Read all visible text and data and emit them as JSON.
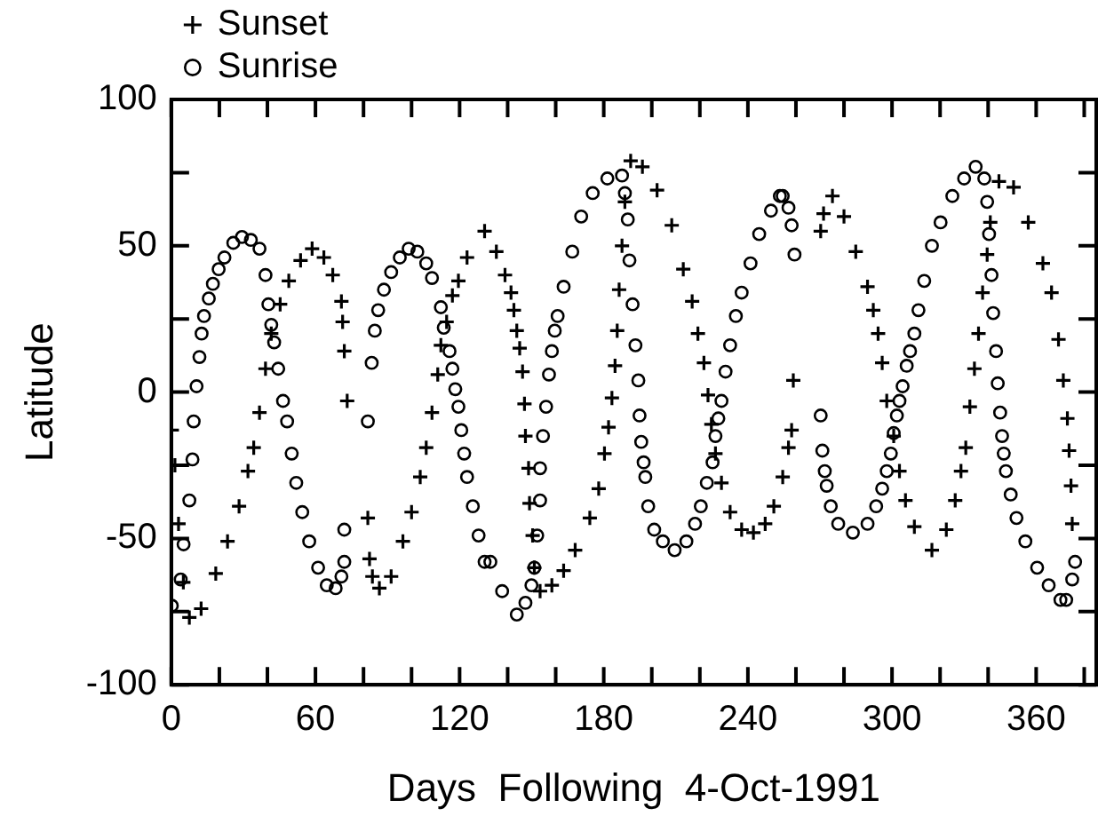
{
  "chart_data": {
    "type": "scatter",
    "xlabel": "Days  Following  4-Oct-1991",
    "ylabel": "Latitude",
    "xlim": [
      0,
      385
    ],
    "ylim": [
      -100,
      100
    ],
    "xticks": [
      0,
      {
        "value": 20,
        "label": null
      },
      {
        "value": 40,
        "label": null
      },
      60,
      {
        "value": 80,
        "label": null
      },
      {
        "value": 100,
        "label": null
      },
      120,
      {
        "value": 140,
        "label": null
      },
      {
        "value": 160,
        "label": null
      },
      180,
      {
        "value": 200,
        "label": null
      },
      {
        "value": 220,
        "label": null
      },
      240,
      {
        "value": 260,
        "label": null
      },
      {
        "value": 280,
        "label": null
      },
      300,
      {
        "value": 320,
        "label": null
      },
      {
        "value": 340,
        "label": null
      },
      360,
      {
        "value": 380,
        "label": null
      }
    ],
    "yticks": [
      -100,
      {
        "value": -75,
        "label": null
      },
      -50,
      {
        "value": -25,
        "label": null
      },
      0,
      {
        "value": 25,
        "label": null
      },
      50,
      {
        "value": 75,
        "label": null
      },
      100
    ],
    "legend": "top left",
    "grid": false,
    "series": [
      {
        "name": "Sunset",
        "color": "#000000",
        "marker": "cross",
        "x": [
          0.2,
          1.5,
          3,
          5,
          7.5,
          12.4,
          18.5,
          23.4,
          28.2,
          31.9,
          34.3,
          36.7,
          39.2,
          41.6,
          45.3,
          48.9,
          53.8,
          58.6,
          63.5,
          67.2,
          70.8,
          71.3,
          72,
          73.2,
          81.8,
          82.5,
          83.7,
          86.6,
          91.5,
          96.4,
          100,
          103.6,
          106.1,
          108.5,
          110.9,
          112.2,
          114.6,
          117,
          119.5,
          123.1,
          130.4,
          135.3,
          138.9,
          141.4,
          142.6,
          143.8,
          145,
          146.2,
          147,
          147.4,
          148.7,
          149.1,
          150.4,
          151.1,
          153.5,
          158.4,
          163.3,
          168.1,
          174.2,
          177.9,
          180.3,
          182,
          183.4,
          184.7,
          185.6,
          186.4,
          187.6,
          188.8,
          191.2,
          196.1,
          202.2,
          208.3,
          213.1,
          216.8,
          219.2,
          221.7,
          223.4,
          224.8,
          226.5,
          229,
          232.6,
          237.4,
          242.3,
          247.2,
          250.8,
          254.5,
          256.9,
          258.2,
          258.9,
          270.3,
          271.5,
          275.2,
          280,
          284.9,
          289.8,
          292.2,
          294.2,
          295.9,
          297.8,
          300.7,
          303.1,
          305.6,
          309.3,
          316.6,
          322.6,
          326.3,
          328.7,
          330.7,
          332.4,
          334.3,
          336,
          337.7,
          339.6,
          340.9,
          344.5,
          350.6,
          356.7,
          362.8,
          366.4,
          369.3,
          371.3,
          373,
          373.7,
          374.5,
          375
        ],
        "values": [
          -13,
          -25,
          -45,
          -65,
          -77,
          -74,
          -62,
          -51,
          -39,
          -27,
          -19,
          -7,
          8,
          20,
          30,
          38,
          45,
          49,
          46,
          40,
          31,
          24,
          14,
          -3,
          -43,
          -57,
          -63,
          -67,
          -63,
          -51,
          -41,
          -29,
          -19,
          -7,
          6,
          16,
          24,
          33,
          38,
          46,
          55,
          48,
          40,
          34,
          28,
          21,
          15,
          7,
          -4,
          -15,
          -26,
          -38,
          -49,
          -60,
          -68,
          -66,
          -61,
          -54,
          -43,
          -33,
          -21,
          -12,
          -2,
          9,
          21,
          35,
          50,
          65,
          79,
          77,
          69,
          57,
          42,
          31,
          20,
          10,
          -1,
          -11,
          -21,
          -31,
          -41,
          -47,
          -48,
          -45,
          -39,
          -29,
          -19,
          -13,
          4,
          55,
          61,
          67,
          60,
          48,
          36,
          28,
          20,
          10,
          -3,
          -15,
          -27,
          -37,
          -46,
          -54,
          -47,
          -37,
          -27,
          -19,
          -5,
          8,
          20,
          34,
          47,
          58,
          72,
          70,
          58,
          44,
          34,
          18,
          4,
          -9,
          -20,
          -32,
          -45
        ]
      },
      {
        "name": "Sunrise",
        "color": "#000000",
        "marker": "circle",
        "x": [
          0.2,
          3.9,
          5.1,
          7.5,
          8.8,
          9.3,
          10.5,
          11.7,
          12.6,
          13.6,
          15.6,
          17.3,
          19.7,
          22.1,
          25.8,
          29.4,
          33.1,
          36.7,
          39.2,
          40.4,
          41.6,
          42.8,
          44.5,
          46.5,
          48.2,
          50.1,
          52,
          54.5,
          57.4,
          61.1,
          64.7,
          68.4,
          70.8,
          72,
          72,
          81.8,
          83.4,
          84.7,
          86.1,
          88.5,
          91.5,
          95.1,
          98.8,
          102.4,
          106.1,
          108.5,
          112.2,
          113.4,
          115.8,
          117,
          118.2,
          119.5,
          120.7,
          121.9,
          123.1,
          125.5,
          127.9,
          130.4,
          132.8,
          137.7,
          143.8,
          147.4,
          149.9,
          151.1,
          152.3,
          153.5,
          153.5,
          154.7,
          156,
          157.2,
          158.4,
          159.6,
          160.8,
          163.3,
          166.9,
          170.6,
          175.4,
          181.5,
          187.6,
          188.8,
          190,
          190.7,
          192,
          193.2,
          194.4,
          194.9,
          195.6,
          196.6,
          197.3,
          198.5,
          201,
          204.6,
          209.5,
          214.4,
          218,
          220.4,
          222.9,
          225.3,
          226.5,
          227.7,
          229,
          230.7,
          232.6,
          235,
          237.4,
          241.1,
          244.7,
          249.6,
          253.3,
          254.5,
          256.9,
          258.2,
          259.4,
          270.3,
          271,
          272,
          272.8,
          274.5,
          277.6,
          283.7,
          289.8,
          293.4,
          295.9,
          297.8,
          299.5,
          300.7,
          302,
          303.1,
          304.4,
          306.1,
          307.5,
          309.3,
          311,
          313.4,
          316.6,
          320.2,
          325.1,
          330,
          334.8,
          338.4,
          339.6,
          340.4,
          341.4,
          342.1,
          343.3,
          344,
          345,
          345.8,
          346.5,
          347.4,
          349.4,
          351.8,
          355.5,
          360.4,
          365.2,
          370.1,
          372.5,
          375,
          376.2
        ],
        "values": [
          -73,
          -64,
          -52,
          -37,
          -23,
          -10,
          2,
          12,
          20,
          26,
          32,
          37,
          42,
          46,
          51,
          53,
          52,
          49,
          40,
          30,
          23,
          17,
          8,
          -3,
          -10,
          -21,
          -31,
          -41,
          -51,
          -60,
          -66,
          -67,
          -63,
          -58,
          -47,
          -10,
          10,
          21,
          28,
          35,
          41,
          46,
          49,
          48,
          44,
          39,
          29,
          22,
          14,
          8,
          1,
          -5,
          -13,
          -21,
          -29,
          -39,
          -49,
          -58,
          -58,
          -68,
          -76,
          -72,
          -66,
          -60,
          -49,
          -37,
          -26,
          -15,
          -5,
          6,
          14,
          21,
          26,
          36,
          48,
          60,
          68,
          73,
          74,
          68,
          59,
          45,
          30,
          16,
          4,
          -8,
          -17,
          -24,
          -29,
          -39,
          -47,
          -51,
          -54,
          -51,
          -45,
          -39,
          -31,
          -24,
          -15,
          -9,
          -3,
          7,
          16,
          26,
          34,
          44,
          54,
          62,
          67,
          67,
          63,
          57,
          47,
          -8,
          -20,
          -27,
          -32,
          -39,
          -45,
          -48,
          -45,
          -39,
          -33,
          -27,
          -21,
          -14,
          -8,
          -3,
          2,
          9,
          14,
          20,
          28,
          38,
          50,
          58,
          67,
          73,
          77,
          73,
          65,
          54,
          40,
          27,
          14,
          3,
          -7,
          -15,
          -21,
          -27,
          -35,
          -43,
          -51,
          -60,
          -66,
          -71,
          -71,
          -64,
          -58
        ]
      }
    ]
  }
}
